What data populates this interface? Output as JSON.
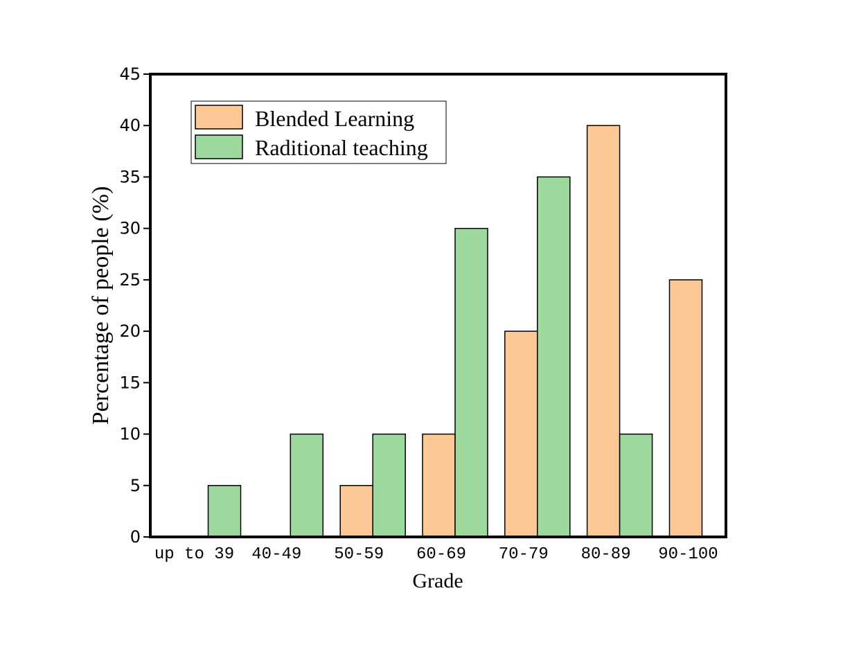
{
  "chart_data": {
    "type": "bar",
    "xlabel": "Grade",
    "ylabel": "Percentage of people (%)",
    "categories": [
      "up to 39",
      "40-49",
      "50-59",
      "60-69",
      "70-79",
      "80-89",
      "90-100"
    ],
    "series": [
      {
        "name": "Blended Learning",
        "values": [
          0,
          0,
          5,
          10,
          20,
          40,
          25
        ],
        "color": "#FBC896"
      },
      {
        "name": "Raditional teaching",
        "values": [
          5,
          10,
          10,
          30,
          35,
          10,
          0
        ],
        "color": "#9DD89D"
      }
    ],
    "ylim": [
      0,
      45
    ],
    "yticks": [
      0,
      5,
      10,
      15,
      20,
      25,
      30,
      35,
      40,
      45
    ],
    "grid": false,
    "legend_position": "top-left"
  }
}
